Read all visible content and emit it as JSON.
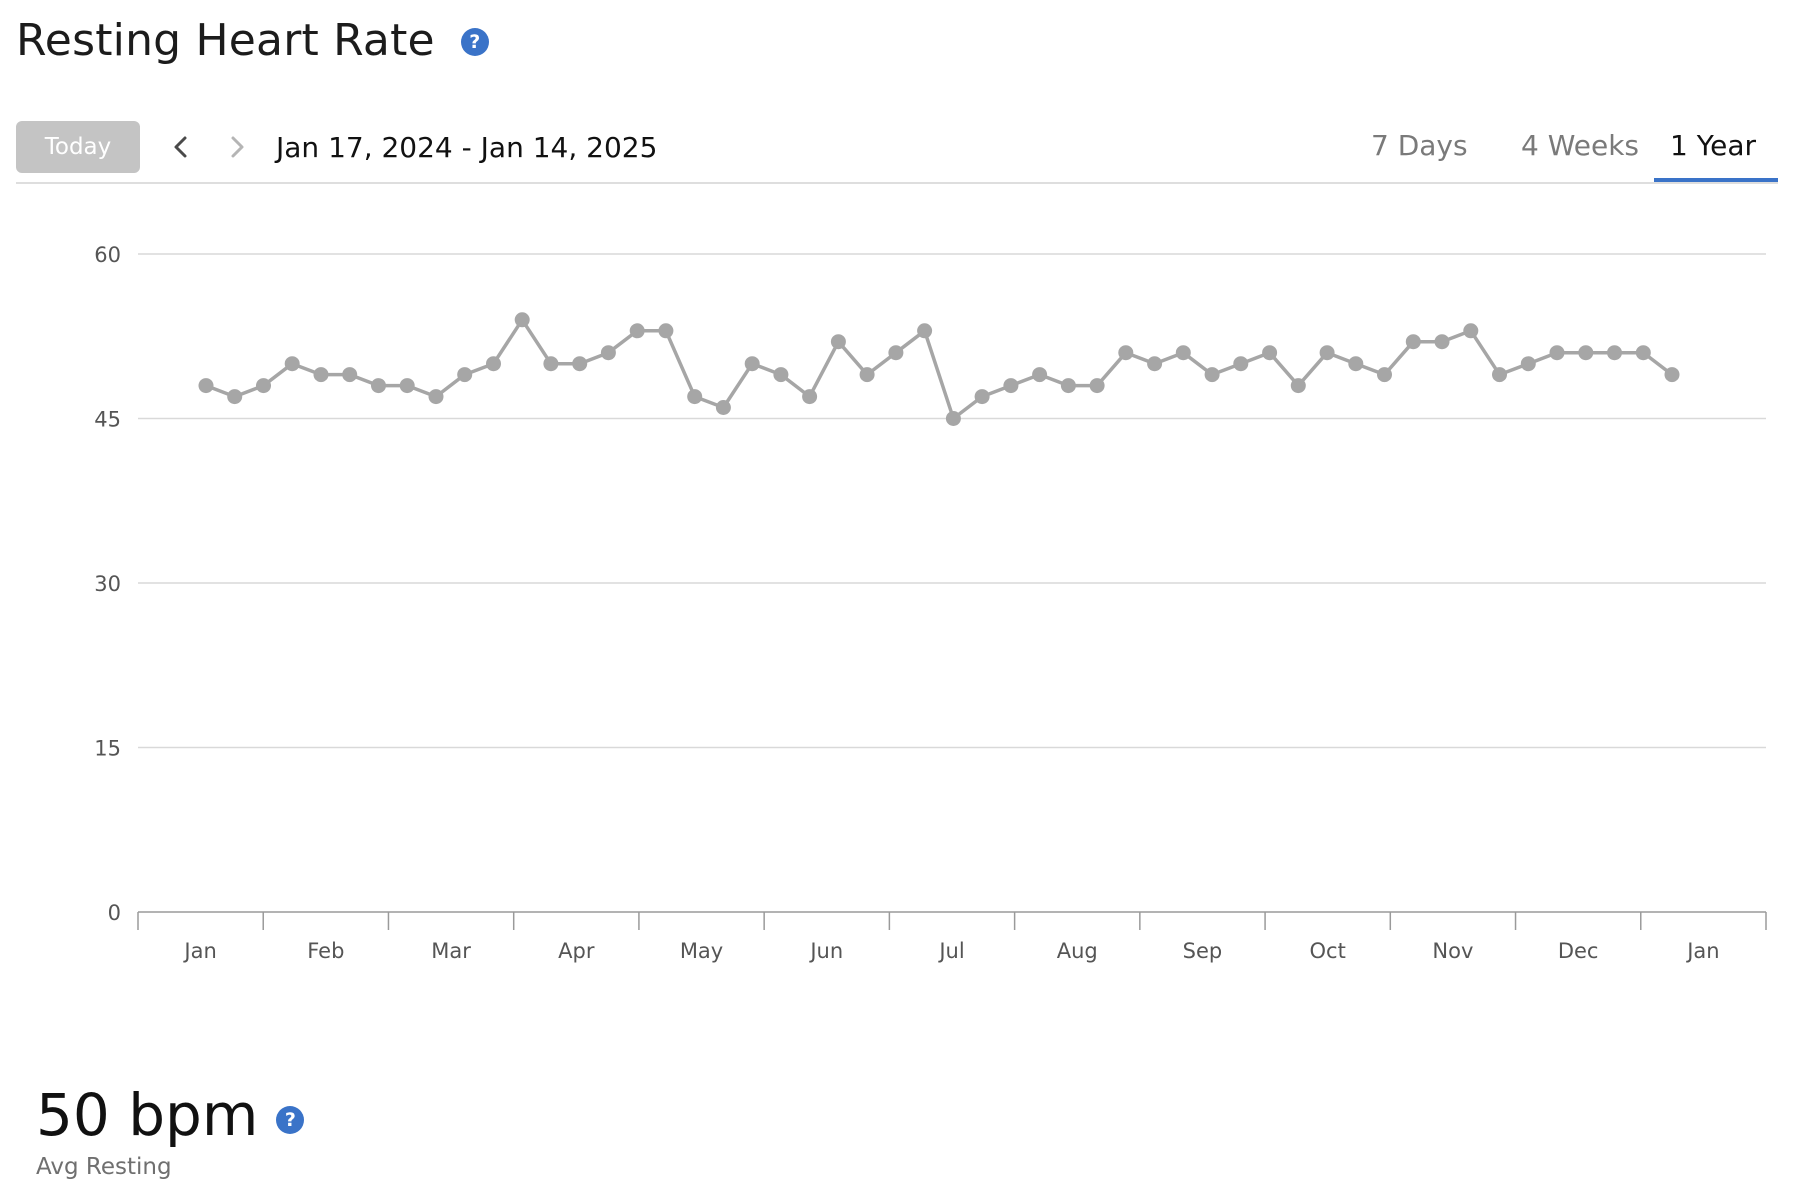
{
  "header": {
    "title": "Resting Heart Rate",
    "help_icon": "question-circle-icon",
    "help_glyph": "?"
  },
  "toolbar": {
    "today_label": "Today",
    "prev_icon": "chevron-left-icon",
    "next_icon": "chevron-right-icon",
    "date_range": "Jan 17, 2024 - Jan 14, 2025",
    "tabs": [
      {
        "label": "7 Days",
        "selected": false
      },
      {
        "label": "4 Weeks",
        "selected": false
      },
      {
        "label": "1 Year",
        "selected": true
      }
    ]
  },
  "colors": {
    "accent": "#3a73c8",
    "line": "#a6a6a6",
    "grid": "#d9d9d9",
    "today_button": "#c4c4c4"
  },
  "chart_data": {
    "type": "line",
    "ylim": [
      0,
      60
    ],
    "yticks": [
      0,
      15,
      30,
      45,
      60
    ],
    "grid": true,
    "x_month_labels": [
      "Jan",
      "Feb",
      "Mar",
      "Apr",
      "May",
      "Jun",
      "Jul",
      "Aug",
      "Sep",
      "Oct",
      "Nov",
      "Dec",
      "Jan"
    ],
    "series": [
      {
        "values": [
          48,
          47,
          48,
          50,
          49,
          49,
          48,
          48,
          47,
          49,
          50,
          54,
          50,
          50,
          51,
          53,
          53,
          47,
          46,
          50,
          49,
          47,
          52,
          49,
          51,
          53,
          45,
          47,
          48,
          49,
          48,
          48,
          51,
          50,
          51,
          49,
          50,
          51,
          48,
          51,
          50,
          49,
          52,
          52,
          53,
          49,
          50,
          51,
          51,
          51,
          51,
          49
        ]
      }
    ]
  },
  "summary": {
    "value": "50 bpm",
    "label": "Avg Resting",
    "help_icon": "question-circle-icon",
    "help_glyph": "?"
  }
}
